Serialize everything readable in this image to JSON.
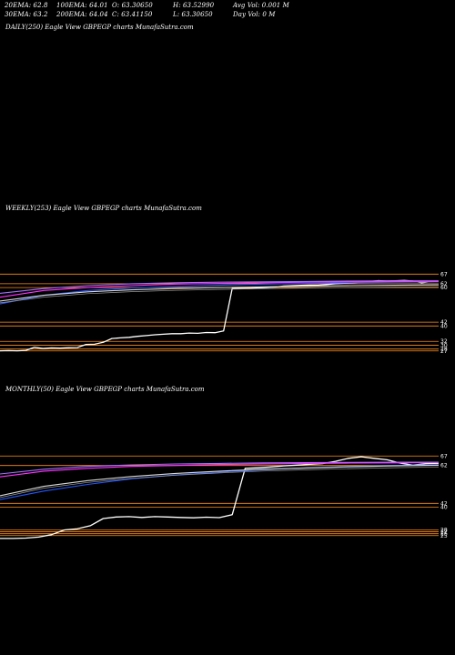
{
  "header": {
    "ema20": "20EMA: 62.8",
    "ema30": "30EMA: 63.2",
    "ema100": "100EMA: 64.01",
    "ema200": "200EMA: 64.04",
    "open": "O: 63.30650",
    "close": "C: 63.41150",
    "high": "H: 63.52990",
    "low": "L: 63.30650",
    "avg_vol": "Avg Vol: 0.001 M",
    "day_vol": "Day Vol: 0  M"
  },
  "colors": {
    "background": "#000000",
    "price": "#ffffff",
    "level_lines": "#ff8c1a",
    "blue_ma": "#2255ff",
    "magenta_ma": "#ff33ff",
    "purple_band": "#a070ff",
    "white_ma": "#d8d8d8"
  },
  "chart_data": [
    {
      "type": "line",
      "title": "DAILY(250) Eagle  View  GBPEGP charts MunafaSutra.com",
      "series": []
    },
    {
      "type": "line",
      "title": "WEEKLY(253) Eagle  View  GBPEGP charts MunafaSutra.com",
      "ylim": [
        25,
        70
      ],
      "levels": [
        {
          "value": 67,
          "label": "67"
        },
        {
          "value": 62,
          "label": "62"
        },
        {
          "value": 60,
          "label": "60"
        },
        {
          "value": 42,
          "label": "42"
        },
        {
          "value": 40,
          "label": "40"
        },
        {
          "value": 32,
          "label": "32"
        },
        {
          "value": 30,
          "label": "30"
        },
        {
          "value": 28,
          "label": "28"
        },
        {
          "value": 27,
          "label": "27"
        }
      ],
      "series": [
        {
          "role": "price",
          "values": [
            27.1,
            27.2,
            27.1,
            27.3,
            28.9,
            28.3,
            28.6,
            28.5,
            28.7,
            28.8,
            30.4,
            30.5,
            31.5,
            33.5,
            33.8,
            34.1,
            34.6,
            35.0,
            35.4,
            35.7,
            36.0,
            36.0,
            36.3,
            36.2,
            36.6,
            36.5,
            37.4,
            59.6,
            59.6,
            59.5,
            59.8,
            60.0,
            60.3,
            60.8,
            61.0,
            61.2,
            61.3,
            61.3,
            61.6,
            62.0,
            62.3,
            62.4,
            62.9,
            63.2,
            63.6,
            63.4,
            63.5,
            63.7,
            63.4,
            62.5,
            63.1,
            63.3
          ]
        },
        {
          "role": "ma",
          "color": "blue",
          "values": [
            51.5,
            56.0,
            58.5,
            59.8,
            60.5,
            61.2,
            61.8,
            62.2,
            62.5,
            62.8,
            63.0
          ]
        },
        {
          "role": "ma",
          "color": "magenta",
          "values": [
            55.0,
            58.5,
            60.0,
            61.0,
            61.8,
            62.2,
            62.5,
            62.8,
            63.0,
            63.1,
            63.2
          ]
        },
        {
          "role": "ma",
          "color": "purple",
          "values": [
            57.0,
            59.5,
            61.0,
            62.0,
            62.5,
            62.8,
            63.0,
            63.2,
            63.4,
            63.5,
            63.5
          ]
        },
        {
          "role": "ma",
          "color": "white",
          "values": [
            53.0,
            56.0,
            57.8,
            58.8,
            59.5,
            60.0,
            60.4,
            60.7,
            61.0,
            61.2,
            61.4
          ]
        }
      ]
    },
    {
      "type": "line",
      "title": "MONTHLY(50) Eagle  View  GBPEGP charts MunafaSutra.com",
      "ylim": [
        22,
        70
      ],
      "levels": [
        {
          "value": 67,
          "label": "67"
        },
        {
          "value": 62,
          "label": "62"
        },
        {
          "value": 42,
          "label": "42"
        },
        {
          "value": 40,
          "label": "40"
        },
        {
          "value": 28,
          "label": "28"
        },
        {
          "value": 27,
          "label": "27"
        },
        {
          "value": 26,
          "label": "26"
        },
        {
          "value": 25,
          "label": "25"
        }
      ],
      "series": [
        {
          "role": "price",
          "values": [
            23.5,
            23.5,
            23.7,
            24.2,
            25.5,
            28.0,
            28.6,
            30.2,
            34.0,
            34.8,
            35.0,
            34.6,
            35.0,
            34.8,
            34.6,
            34.4,
            34.7,
            34.5,
            36.0,
            60.5,
            60.8,
            61.2,
            61.8,
            62.2,
            62.6,
            63.0,
            64.2,
            65.8,
            66.6,
            65.8,
            65.0,
            63.3,
            62.2,
            63.0,
            63.2
          ]
        },
        {
          "role": "ma",
          "color": "blue",
          "values": [
            44.0,
            48.5,
            52.0,
            55.0,
            57.0,
            58.5,
            59.8,
            60.8,
            61.5,
            62.0,
            62.4
          ]
        },
        {
          "role": "ma",
          "color": "magenta",
          "values": [
            56.0,
            59.0,
            60.5,
            61.5,
            62.0,
            62.5,
            62.8,
            63.1,
            63.3,
            63.4,
            63.5
          ]
        },
        {
          "role": "ma",
          "color": "purple",
          "values": [
            57.5,
            60.0,
            61.5,
            62.3,
            62.8,
            63.1,
            63.4,
            63.5,
            63.6,
            63.7,
            63.7
          ]
        },
        {
          "role": "ma",
          "color": "white",
          "values": [
            46.0,
            51.0,
            54.0,
            56.2,
            57.8,
            59.0,
            60.0,
            60.7,
            61.3,
            61.8,
            62.2
          ]
        }
      ]
    }
  ]
}
